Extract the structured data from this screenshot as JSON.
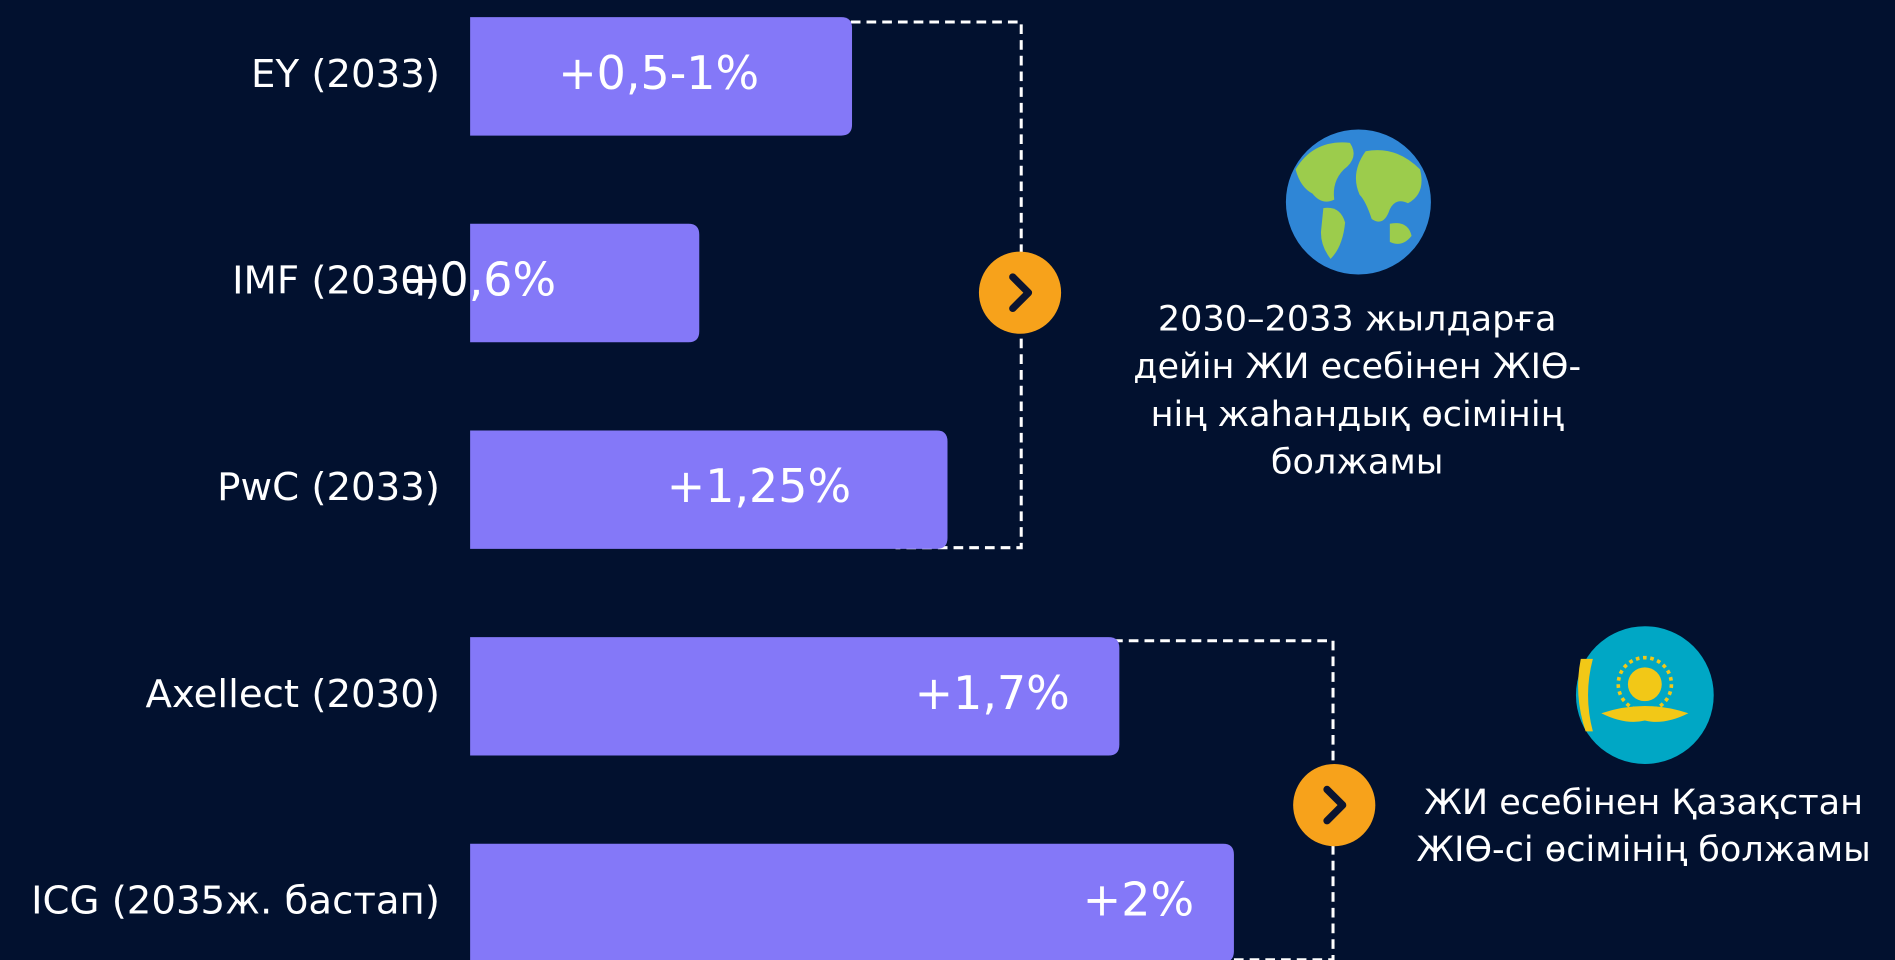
{
  "chart_data": {
    "type": "bar",
    "orientation": "horizontal",
    "categories": [
      "EY (2033)",
      "IMF (2030)",
      "PwC (2033)",
      "Axellect (2030)",
      "ICG (2035ж. бастап)"
    ],
    "values": [
      1,
      0.6,
      1.25,
      1.7,
      2
    ],
    "value_labels": [
      "+0,5-1%",
      "+0,6%",
      "+1,25%",
      "+1,7%",
      "+2%"
    ],
    "color": "#8478f8",
    "annotations": [
      {
        "lines": [
          "2030–2033 жылдарға",
          "дейін ЖИ есебінен ЖІӨ-",
          "нің жаһандық өсімінің",
          "болжамы"
        ]
      },
      {
        "lines": [
          "ЖИ есебінен Қазақстан",
          "ЖІӨ-сі өсімінің болжамы"
        ]
      }
    ]
  }
}
